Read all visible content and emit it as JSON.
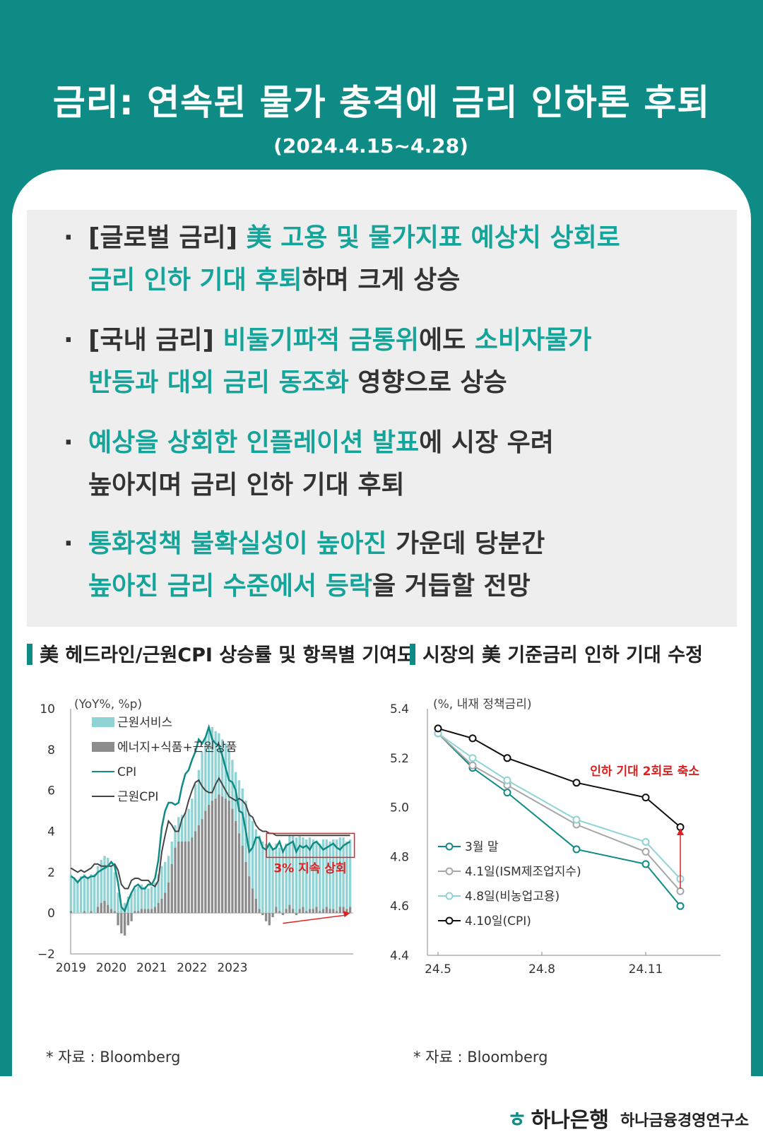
{
  "header": {
    "title": "금리: 연속된 물가 충격에 금리 인하론 후퇴",
    "period": "(2024.4.15~4.28)"
  },
  "bullets": [
    {
      "lines": [
        [
          {
            "t": "[글로벌 금리] ",
            "h": false
          },
          {
            "t": "美 고용 및 물가지표 예상치 상회로",
            "h": true
          }
        ],
        [
          {
            "t": "금리 인하 기대 후퇴",
            "h": true
          },
          {
            "t": "하며 크게 상승",
            "h": false
          }
        ]
      ]
    },
    {
      "lines": [
        [
          {
            "t": "[국내 금리] ",
            "h": false
          },
          {
            "t": "비둘기파적 금통위",
            "h": true
          },
          {
            "t": "에도 ",
            "h": false
          },
          {
            "t": "소비자물가",
            "h": true
          }
        ],
        [
          {
            "t": "반등과 대외 금리 동조화",
            "h": true
          },
          {
            "t": " 영향으로 상승",
            "h": false
          }
        ]
      ]
    },
    {
      "lines": [
        [
          {
            "t": "예상을 상회한 인플레이션 발표",
            "h": true
          },
          {
            "t": "에 시장 우려",
            "h": false
          }
        ],
        [
          {
            "t": "높아지며 금리 인하 기대 후퇴",
            "h": false
          }
        ]
      ]
    },
    {
      "lines": [
        [
          {
            "t": "통화정책 불확실성이 높아진",
            "h": true
          },
          {
            "t": " 가운데 당분간",
            "h": false
          }
        ],
        [
          {
            "t": "높아진 금리 수준에서 ",
            "h": true
          },
          {
            "t": "등락",
            "h": true
          },
          {
            "t": "을 거듭할 전망",
            "h": false
          }
        ]
      ]
    }
  ],
  "section_left_title": "美 헤드라인/근원CPI 상승률 및 항목별 기여도",
  "section_right_title": "시장의 美 기준금리 인하 기대 수정",
  "source_left": "* 자료 : Bloomberg",
  "source_right": "* 자료 : Bloomberg",
  "footer": {
    "bank": "하나은행",
    "institute": "하나금융경영연구소"
  },
  "colors": {
    "teal": "#0f8b86",
    "highlight": "#14a49a",
    "services": "#8fd3d5",
    "goods": "#8c8c8c",
    "core_cpi": "#444444",
    "red": "#e02020"
  },
  "chart_data": [
    {
      "type": "bar",
      "ylabel": "(YoY%, %p)",
      "ylim": [
        -2,
        10
      ],
      "yticks": [
        -2,
        0,
        2,
        4,
        6,
        8,
        10
      ],
      "xticks": [
        "2019",
        "2020",
        "2021",
        "2022",
        "2023"
      ],
      "annotation": "3% 지속 상회",
      "series": [
        {
          "name": "근원서비스",
          "values": [
            1.8,
            1.7,
            1.6,
            1.8,
            1.8,
            1.7,
            1.8,
            1.9,
            2.0,
            2.1,
            2.2,
            2.3,
            2.1,
            1.9,
            1.0,
            0.3,
            0.5,
            0.8,
            1.0,
            1.1,
            1.2,
            1.2,
            1.1,
            1.0,
            1.1,
            1.2,
            1.4,
            1.6,
            1.5,
            1.3,
            1.1,
            1.1,
            1.2,
            1.3,
            1.4,
            1.6,
            1.9,
            2.3,
            2.7,
            3.3,
            3.6,
            3.8,
            3.6,
            3.3,
            3.0,
            2.8,
            2.7,
            2.5,
            2.4,
            2.4,
            2.6,
            2.8,
            3.0,
            3.1,
            3.3,
            3.4,
            3.6,
            3.5,
            3.4,
            3.3,
            3.2,
            3.1,
            3.1,
            3.0,
            3.2,
            3.4,
            3.6,
            3.7,
            3.6,
            3.4,
            3.5,
            3.5,
            3.4,
            3.2,
            3.3,
            3.4,
            3.3,
            3.3,
            3.4,
            3.5,
            3.4,
            3.4,
            3.3,
            3.3
          ]
        },
        {
          "name": "에너지+식품+근원상품",
          "values": [
            0.1,
            0.0,
            0.0,
            0.0,
            0.1,
            0.0,
            0.1,
            0.0,
            0.3,
            0.5,
            0.6,
            0.4,
            0.2,
            0.1,
            -0.6,
            -1.0,
            -1.1,
            -0.6,
            -0.4,
            0.1,
            0.1,
            0.2,
            0.2,
            0.2,
            0.2,
            0.3,
            0.5,
            0.7,
            1.0,
            1.5,
            2.4,
            3.2,
            3.5,
            3.5,
            3.5,
            3.5,
            3.7,
            4.0,
            4.3,
            4.6,
            5.0,
            5.3,
            5.5,
            5.6,
            5.8,
            5.7,
            5.6,
            5.5,
            5.1,
            4.5,
            3.9,
            3.3,
            2.5,
            1.8,
            1.2,
            0.7,
            0.2,
            -0.1,
            -0.4,
            -0.6,
            -0.2,
            0.3,
            0.1,
            -0.1,
            0.2,
            0.4,
            0.2,
            -0.1,
            0.2,
            0.3,
            0.1,
            0.2,
            0.2,
            0.3,
            0.1,
            0.2,
            0.3,
            0.2,
            0.2,
            0.1,
            0.3,
            0.3,
            0.2,
            0.3
          ]
        },
        {
          "name": "CPI",
          "values": [
            1.8,
            1.7,
            1.5,
            1.7,
            1.8,
            1.7,
            1.8,
            1.8,
            2.0,
            2.1,
            2.2,
            2.3,
            2.5,
            2.3,
            1.5,
            0.3,
            0.1,
            0.6,
            1.0,
            1.3,
            1.4,
            1.2,
            1.2,
            1.4,
            1.4,
            1.7,
            2.6,
            4.2,
            5.0,
            5.4,
            5.4,
            5.3,
            5.4,
            6.2,
            6.8,
            7.0,
            7.5,
            7.9,
            8.5,
            8.3,
            8.6,
            9.1,
            8.5,
            8.3,
            8.2,
            7.7,
            7.1,
            6.5,
            6.4,
            6.0,
            5.0,
            4.9,
            4.0,
            3.0,
            3.2,
            3.7,
            3.7,
            3.2,
            3.1,
            3.4,
            3.1,
            3.2,
            3.5,
            3.0,
            3.3,
            3.4,
            3.5,
            3.0,
            3.3,
            3.2,
            3.3,
            3.1,
            3.4,
            3.5,
            3.3,
            3.1,
            3.2,
            3.3,
            3.4,
            3.2,
            3.1,
            3.3,
            3.4,
            3.5
          ]
        },
        {
          "name": "근원CPI",
          "values": [
            2.2,
            2.1,
            2.0,
            2.1,
            2.0,
            2.1,
            2.2,
            2.4,
            2.4,
            2.3,
            2.3,
            2.3,
            2.3,
            2.4,
            2.1,
            1.4,
            1.2,
            1.2,
            1.6,
            1.7,
            1.7,
            1.6,
            1.6,
            1.6,
            1.4,
            1.3,
            1.6,
            3.0,
            3.8,
            4.5,
            4.3,
            4.0,
            4.0,
            4.6,
            4.9,
            5.5,
            6.0,
            6.4,
            6.5,
            6.2,
            6.0,
            5.9,
            5.9,
            6.3,
            6.6,
            6.3,
            6.0,
            5.7,
            5.6,
            5.5,
            5.6,
            5.5,
            5.3,
            4.8,
            4.7,
            4.3,
            4.1,
            4.0,
            4.0,
            3.9,
            3.9,
            3.8,
            3.8,
            3.8,
            3.8,
            3.8,
            3.8,
            3.8,
            3.8,
            3.8,
            3.8,
            3.8,
            3.8,
            3.8,
            3.8,
            3.8,
            3.8,
            3.8,
            3.8,
            3.8,
            3.8,
            3.8,
            3.8,
            3.8
          ]
        }
      ]
    },
    {
      "type": "line",
      "ylabel": "(%, 내재 정책금리)",
      "ylim": [
        4.4,
        5.4
      ],
      "yticks": [
        "4.4",
        "4.6",
        "4.8",
        "5.0",
        "5.2",
        "5.4"
      ],
      "xticks": [
        "24.5",
        "24.8",
        "24.11"
      ],
      "x": [
        "24.5",
        "24.6",
        "24.7",
        "24.8",
        "24.9",
        "24.10",
        "24.11",
        "24.12"
      ],
      "annotation": "인하 기대 2회로 축소",
      "series": [
        {
          "name": "3월 말",
          "values": [
            5.3,
            5.16,
            5.06,
            null,
            4.83,
            null,
            4.77,
            4.6
          ]
        },
        {
          "name": "4.1일(ISM제조업지수)",
          "values": [
            5.3,
            5.17,
            5.09,
            null,
            4.93,
            null,
            4.82,
            4.66
          ]
        },
        {
          "name": "4.8일(비농업고용)",
          "values": [
            5.3,
            5.2,
            5.11,
            null,
            4.95,
            null,
            4.86,
            4.71
          ]
        },
        {
          "name": "4.10일(CPI)",
          "values": [
            5.32,
            5.28,
            5.2,
            null,
            5.1,
            null,
            5.04,
            4.92
          ]
        }
      ]
    }
  ]
}
